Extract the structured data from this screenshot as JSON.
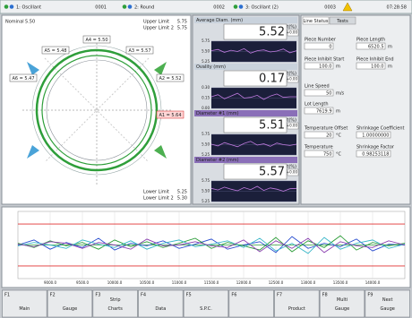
{
  "top_bar": {
    "lines": [
      {
        "name": "1: Oscillant",
        "code": "0001"
      },
      {
        "name": "2: Round",
        "code": "0002"
      },
      {
        "name": "3: Oscillant (2)",
        "code": "0003"
      }
    ],
    "time": "07:28:58"
  },
  "gauge": {
    "nominal": {
      "label": "Nominal",
      "value": "5.50"
    },
    "upper": [
      {
        "label": "Upper Limit",
        "value": "5.75"
      },
      {
        "label": "Upper Limit 2",
        "value": "5.75"
      }
    ],
    "lower": [
      {
        "label": "Lower Limit",
        "value": "5.25"
      },
      {
        "label": "Lower Limit 2",
        "value": "5.30"
      }
    ],
    "sensors": [
      {
        "label": "A4 = 5.50"
      },
      {
        "label": "A5 = 5.48"
      },
      {
        "label": "A3 = 5.57"
      },
      {
        "label": "A6 = 5.47"
      },
      {
        "label": "A2 = 5.52"
      },
      {
        "label": "A1 = 5.64",
        "alarm": true
      }
    ]
  },
  "readings": [
    {
      "label": "Average Diam. (mm)",
      "offset_label": "Offset(%)",
      "value": "5.52",
      "offset": "+0.00",
      "ylim": [
        5.25,
        5.75
      ],
      "yticks": [
        {
          "value": 5.75,
          "label": "5.75"
        },
        {
          "value": 5.5,
          "label": "5.50"
        },
        {
          "value": 5.25,
          "label": "5.25"
        }
      ],
      "trace": [
        5.52,
        5.55,
        5.48,
        5.53,
        5.5,
        5.57,
        5.46,
        5.52,
        5.54,
        5.49,
        5.51,
        5.56,
        5.47,
        5.52
      ]
    },
    {
      "label": "Ovality (mm)",
      "offset_label": "Offset(%)",
      "value": "0.17",
      "offset": "+0.00",
      "ylim": [
        0,
        0.3
      ],
      "yticks": [
        {
          "value": 0.3,
          "label": "0.30"
        },
        {
          "value": 0.15,
          "label": "0.15"
        },
        {
          "value": 0,
          "label": "0.00"
        }
      ],
      "trace": [
        0.17,
        0.2,
        0.14,
        0.18,
        0.22,
        0.15,
        0.16,
        0.19,
        0.13,
        0.18,
        0.21,
        0.16,
        0.17,
        0.17
      ]
    },
    {
      "label": "Diameter #1 (mm)",
      "offset_label": "Offset(%)",
      "value": "5.51",
      "offset": "+0.00",
      "ylim": [
        5.25,
        5.75
      ],
      "yticks": [
        {
          "value": 5.75,
          "label": "5.75"
        },
        {
          "value": 5.5,
          "label": "5.50"
        },
        {
          "value": 5.25,
          "label": "5.25"
        }
      ],
      "trace": [
        5.51,
        5.47,
        5.55,
        5.5,
        5.45,
        5.53,
        5.58,
        5.49,
        5.52,
        5.46,
        5.54,
        5.5,
        5.48,
        5.51
      ]
    },
    {
      "label": "Diameter #2 (mm)",
      "offset_label": "Offset(%)",
      "value": "5.57",
      "offset": "+0.00",
      "ylim": [
        5.25,
        5.75
      ],
      "yticks": [
        {
          "value": 5.75,
          "label": "5.75"
        },
        {
          "value": 5.5,
          "label": "5.50"
        },
        {
          "value": 5.25,
          "label": "5.25"
        }
      ],
      "trace": [
        5.57,
        5.53,
        5.6,
        5.55,
        5.51,
        5.59,
        5.54,
        5.62,
        5.52,
        5.58,
        5.55,
        5.5,
        5.56,
        5.57
      ]
    }
  ],
  "status": {
    "tabs": [
      "Line Status",
      "Tests"
    ],
    "fields": [
      {
        "label": "Piece Number",
        "value": "0"
      },
      {
        "label": "Piece Length",
        "value": "6520.5",
        "unit": "m"
      },
      {
        "label": "Piece Inhibit Start",
        "value": "100.0",
        "unit": "m"
      },
      {
        "label": "Piece Inhibit End",
        "value": "100.0",
        "unit": "m"
      },
      {
        "label": "Line Speed",
        "value": "50",
        "unit": "m/s"
      },
      {
        "label": "Lot Length",
        "value": "7619.9",
        "unit": "m"
      },
      {
        "label": "Temperature Offset",
        "value": "20",
        "unit": "°C"
      },
      {
        "label": "Shrinkage Coefficient",
        "value": "1.00000000"
      },
      {
        "label": "Temperature",
        "value": "750",
        "unit": "°C"
      },
      {
        "label": "Shrinkage Factor",
        "value": "0.98253118"
      }
    ]
  },
  "chart_data": {
    "type": "line",
    "xlim": [
      8500,
      14500
    ],
    "ylim": [
      5.1,
      5.9
    ],
    "xticks": [
      {
        "value": 9000,
        "label": "9000.0"
      },
      {
        "value": 9500,
        "label": "9500.0"
      },
      {
        "value": 10000,
        "label": "10000.0"
      },
      {
        "value": 10500,
        "label": "10500.0"
      },
      {
        "value": 11000,
        "label": "11000.0"
      },
      {
        "value": 11500,
        "label": "11500.0"
      },
      {
        "value": 12000,
        "label": "12000.0"
      },
      {
        "value": 12500,
        "label": "12500.0"
      },
      {
        "value": 13000,
        "label": "13000.0"
      },
      {
        "value": 13500,
        "label": "13500.0"
      },
      {
        "value": 14000,
        "label": "14000.0"
      }
    ],
    "x": [
      8500,
      8750,
      9000,
      9250,
      9500,
      9750,
      10000,
      10250,
      10500,
      10750,
      11000,
      11250,
      11500,
      11750,
      12000,
      12250,
      12500,
      12750,
      13000,
      13250,
      13500,
      13750,
      14000,
      14250,
      14500
    ],
    "series": [
      {
        "color": "#2b4fd0",
        "values": [
          5.5,
          5.56,
          5.45,
          5.53,
          5.47,
          5.58,
          5.44,
          5.52,
          5.49,
          5.55,
          5.46,
          5.51,
          5.57,
          5.45,
          5.5,
          5.54,
          5.41,
          5.6,
          5.46,
          5.52,
          5.48,
          5.57,
          5.43,
          5.51,
          5.5
        ]
      },
      {
        "color": "#2e9e3a",
        "values": [
          5.52,
          5.47,
          5.55,
          5.49,
          5.53,
          5.45,
          5.56,
          5.48,
          5.54,
          5.47,
          5.52,
          5.58,
          5.46,
          5.53,
          5.49,
          5.44,
          5.59,
          5.42,
          5.55,
          5.47,
          5.61,
          5.44,
          5.53,
          5.49,
          5.52
        ]
      },
      {
        "color": "#3bb7c9",
        "values": [
          5.49,
          5.53,
          5.5,
          5.46,
          5.56,
          5.51,
          5.47,
          5.55,
          5.45,
          5.52,
          5.56,
          5.48,
          5.51,
          5.55,
          5.47,
          5.58,
          5.43,
          5.52,
          5.4,
          5.59,
          5.45,
          5.52,
          5.56,
          5.46,
          5.51
        ]
      },
      {
        "color": "#8a3fb0",
        "values": [
          5.51,
          5.48,
          5.54,
          5.52,
          5.46,
          5.53,
          5.5,
          5.45,
          5.57,
          5.49,
          5.5,
          5.54,
          5.49,
          5.47,
          5.56,
          5.42,
          5.55,
          5.46,
          5.58,
          5.41,
          5.54,
          5.49,
          5.47,
          5.55,
          5.5
        ]
      }
    ]
  },
  "function_keys": [
    {
      "key": "F1",
      "label": "Main"
    },
    {
      "key": "F2",
      "label": "Gauge"
    },
    {
      "key": "F3",
      "label": "Strip Charts"
    },
    {
      "key": "F4",
      "label": "Data"
    },
    {
      "key": "F5",
      "label": "S.P.C."
    },
    {
      "key": "F6"
    },
    {
      "key": "F7",
      "label": "Product"
    },
    {
      "key": "F8",
      "label": "Multi Gauge"
    },
    {
      "key": "F9",
      "label": "Next Gauge"
    }
  ]
}
